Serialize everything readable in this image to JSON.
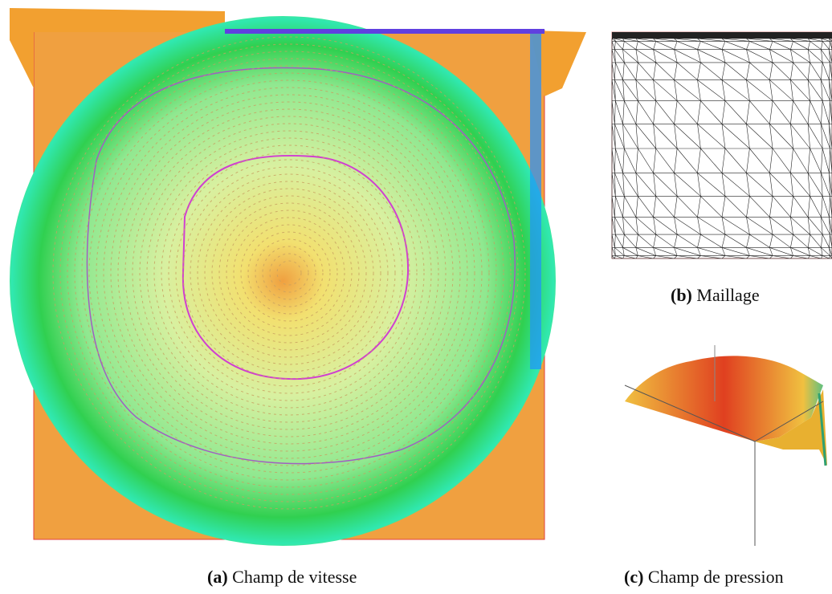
{
  "figures": [
    {
      "label": "(a)",
      "caption": "Champ de vitesse"
    },
    {
      "label": "(b)",
      "caption": "Maillage"
    },
    {
      "label": "(c)",
      "caption": "Champ de pression"
    }
  ]
}
